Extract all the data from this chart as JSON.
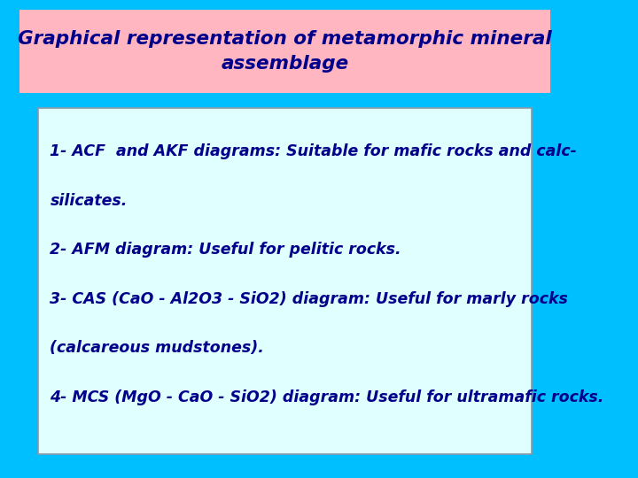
{
  "title_line1": "Graphical representation of metamorphic mineral",
  "title_line2": "assemblage",
  "title_bg_color": "#FFB6C1",
  "title_text_color": "#00008B",
  "background_color": "#00BFFF",
  "box_bg_color": "#E0FFFF",
  "box_border_color": "#8899AA",
  "text_color": "#00008B",
  "lines": [
    "1- ACF  and AKF diagrams: Suitable for mafic rocks and calc-",
    "silicates.",
    "2- AFM diagram: Useful for pelitic rocks.",
    "3- CAS (CaO - Al2O3 - SiO2) diagram: Useful for marly rocks",
    "(calcareous mudstones).",
    "4- MCS (MgO - CaO - SiO2) diagram: Useful for ultramafic rocks."
  ],
  "font_size_title": 15.5,
  "font_size_body": 12.5
}
